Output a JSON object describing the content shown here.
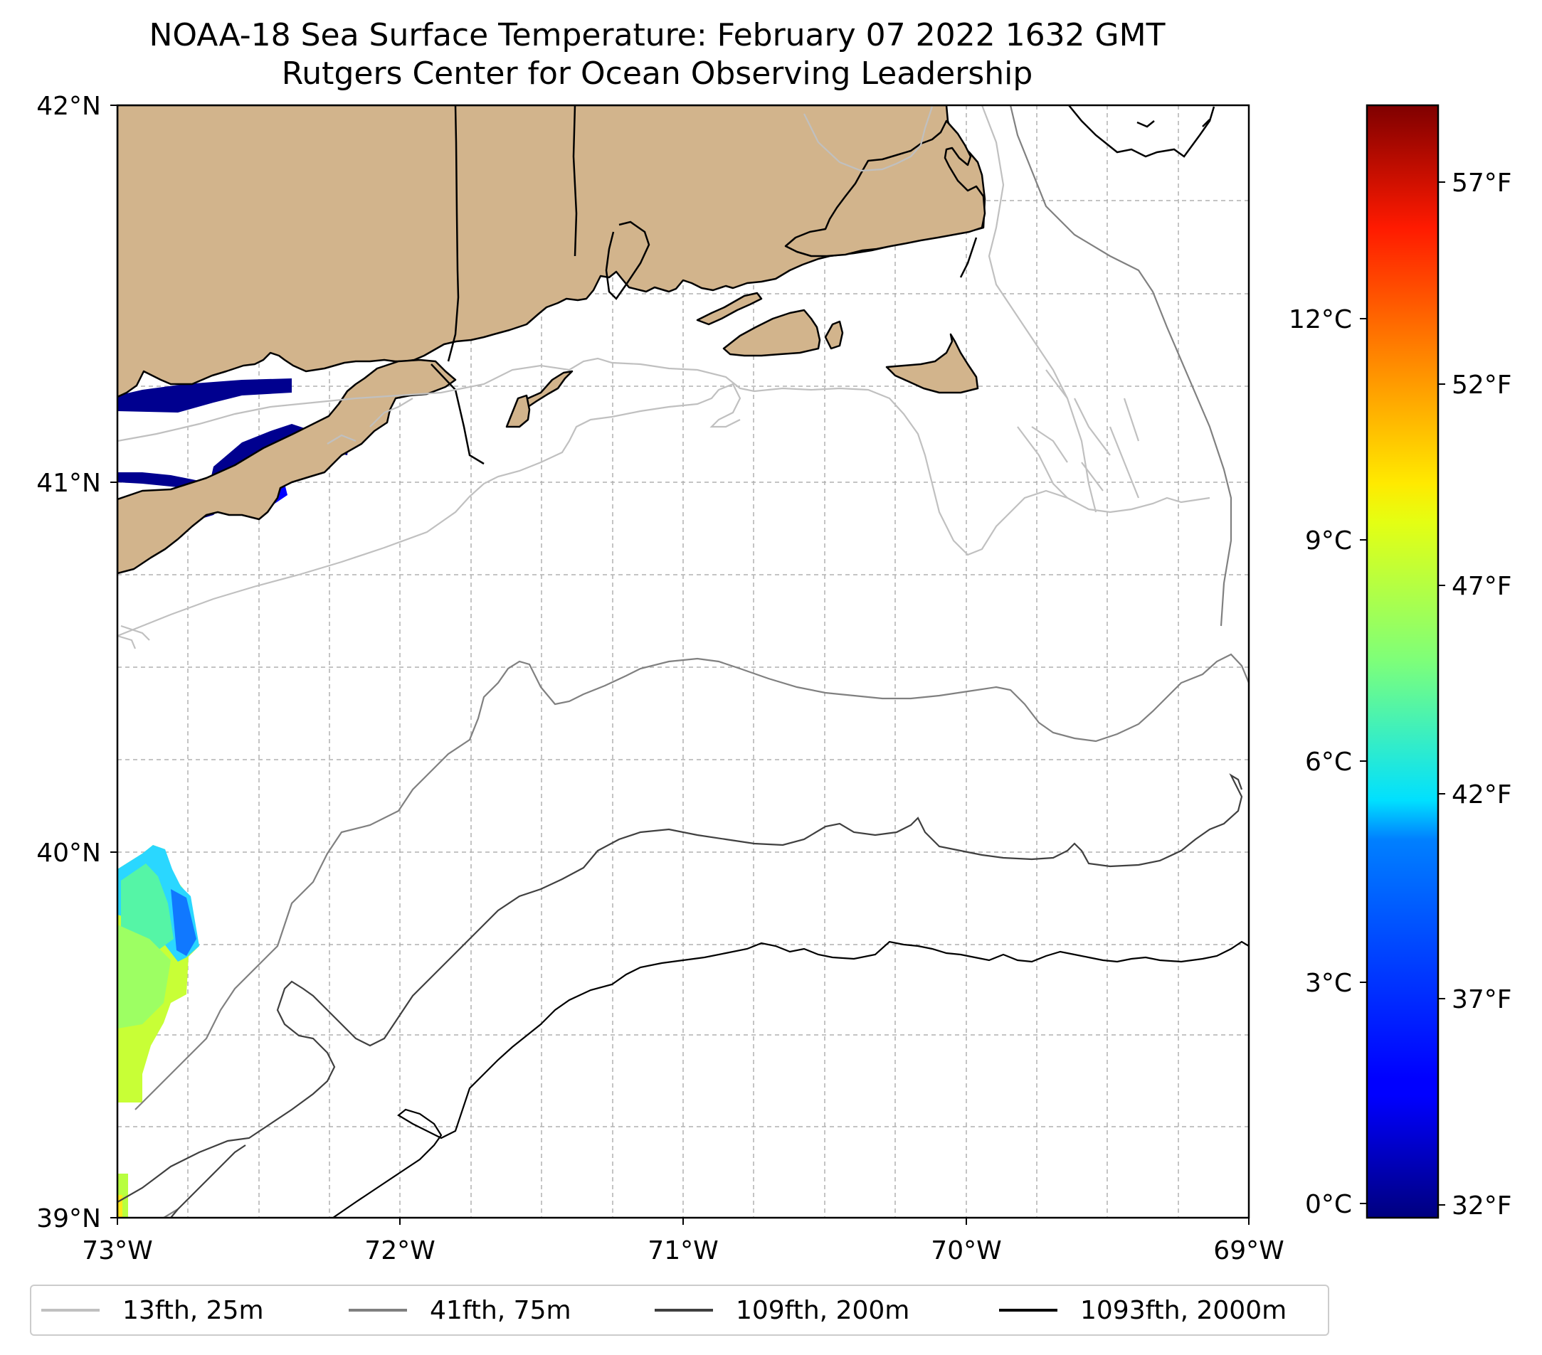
{
  "title": {
    "line1": "NOAA-18 Sea Surface Temperature: February 07 2022 1632 GMT",
    "line2": "Rutgers Center for Ocean Observing Leadership"
  },
  "axes": {
    "x_ticks": [
      "73°W",
      "72°W",
      "71°W",
      "70°W",
      "69°W"
    ],
    "y_ticks": [
      "42°N",
      "41°N",
      "40°N",
      "39°N"
    ],
    "x_range": [
      -73,
      -69
    ],
    "y_range": [
      39,
      42
    ],
    "gridlines": true
  },
  "colorbar": {
    "celsius_ticks": [
      "12°C",
      "9°C",
      "6°C",
      "3°C",
      "0°C"
    ],
    "fahrenheit_ticks": [
      "57°F",
      "52°F",
      "47°F",
      "42°F",
      "37°F",
      "32°F"
    ],
    "colormap": "jet",
    "range_celsius": [
      0,
      14.9
    ]
  },
  "legend": {
    "items": [
      {
        "label": "13fth, 25m",
        "color": "#c0c0c0"
      },
      {
        "label": "41fth, 75m",
        "color": "#808080"
      },
      {
        "label": "109fth, 200m",
        "color": "#404040"
      },
      {
        "label": "1093fth, 2000m",
        "color": "#000000"
      }
    ]
  },
  "colors": {
    "land": "#d2b48c",
    "coastline": "#000000",
    "grid": "#b0b0b0"
  }
}
